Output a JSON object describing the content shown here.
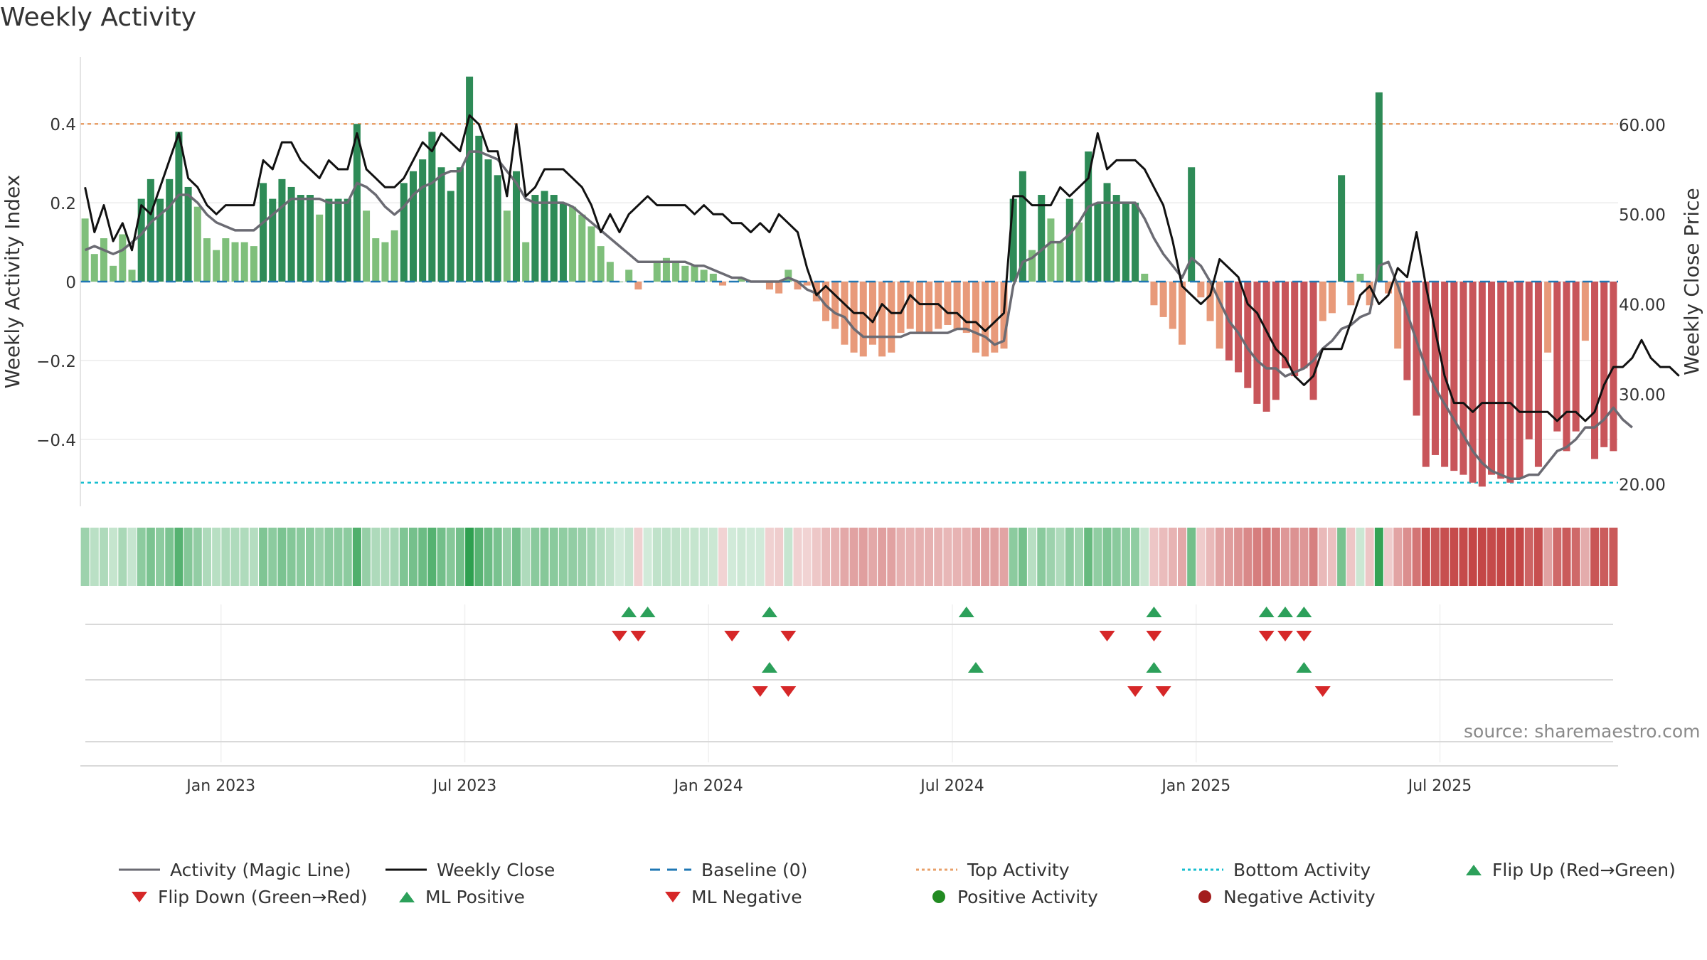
{
  "title": "Weekly Activity",
  "source": "source: sharemaestro.com",
  "colors": {
    "dark_green": "#2e8b57",
    "light_green": "#7fbf7b",
    "dark_red": "#c8555a",
    "light_red": "#e89a7a",
    "magic_line": "#6b6b73",
    "close_line": "#111111",
    "baseline": "#1f77b4",
    "top_line": "#e8a06a",
    "bottom_line": "#17becf",
    "flip_up": "#2ca05a",
    "flip_down": "#d62728",
    "positive_dot": "#228b22",
    "negative_dot": "#a31d1d"
  },
  "chart_data": {
    "type": "bar",
    "title": "Weekly Activity",
    "ylabel": "Weekly Activity Index",
    "y2label": "Weekly Close Price",
    "ylim": [
      -0.57,
      0.57
    ],
    "y2lim": [
      17.5,
      67.5
    ],
    "yticks": [
      0.4,
      0.2,
      0,
      -0.2,
      -0.4
    ],
    "ytick_labels": [
      "0.4",
      "0.2",
      "0",
      "−0.2",
      "−0.4"
    ],
    "y2ticks": [
      60,
      50,
      40,
      30,
      20
    ],
    "y2tick_labels": [
      "60.00",
      "50.00",
      "40.00",
      "30.00",
      "20.00"
    ],
    "xtick_labels": [
      "Jan 2023",
      "Jul 2023",
      "Jan 2024",
      "Jul 2024",
      "Jan 2025",
      "Jul 2025"
    ],
    "xtick_weeks": [
      15,
      41,
      67,
      93,
      119,
      145
    ],
    "top_activity": 0.4,
    "bottom_activity": -0.51,
    "activity_values": [
      0.16,
      0.07,
      0.11,
      0.04,
      0.12,
      0.03,
      0.21,
      0.26,
      0.21,
      0.26,
      0.38,
      0.24,
      0.19,
      0.11,
      0.08,
      0.11,
      0.1,
      0.1,
      0.09,
      0.25,
      0.21,
      0.26,
      0.24,
      0.22,
      0.22,
      0.17,
      0.21,
      0.21,
      0.21,
      0.4,
      0.18,
      0.11,
      0.1,
      0.13,
      0.25,
      0.28,
      0.31,
      0.38,
      0.29,
      0.23,
      0.29,
      0.52,
      0.37,
      0.31,
      0.27,
      0.18,
      0.28,
      0.1,
      0.22,
      0.23,
      0.22,
      0.2,
      0.19,
      0.17,
      0.14,
      0.09,
      0.05,
      0.0,
      0.03,
      -0.02,
      0.0,
      0.05,
      0.06,
      0.05,
      0.04,
      0.04,
      0.03,
      0.02,
      -0.01,
      0.0,
      0.01,
      0.0,
      0.0,
      -0.02,
      -0.03,
      0.03,
      -0.02,
      -0.01,
      -0.05,
      -0.1,
      -0.12,
      -0.16,
      -0.18,
      -0.19,
      -0.16,
      -0.19,
      -0.18,
      -0.13,
      -0.12,
      -0.13,
      -0.13,
      -0.12,
      -0.11,
      -0.12,
      -0.13,
      -0.18,
      -0.19,
      -0.18,
      -0.17,
      0.21,
      0.28,
      0.08,
      0.22,
      0.16,
      0.1,
      0.21,
      0.15,
      0.33,
      0.2,
      0.25,
      0.22,
      0.2,
      0.2,
      0.02,
      -0.06,
      -0.09,
      -0.12,
      -0.16,
      0.29,
      -0.04,
      -0.1,
      -0.17,
      -0.2,
      -0.23,
      -0.27,
      -0.31,
      -0.33,
      -0.3,
      -0.22,
      -0.24,
      -0.22,
      -0.3,
      -0.1,
      -0.08,
      0.27,
      -0.06,
      0.02,
      -0.06,
      0.48,
      -0.03,
      -0.17,
      -0.25,
      -0.34,
      -0.47,
      -0.44,
      -0.47,
      -0.48,
      -0.49,
      -0.51,
      -0.52,
      -0.49,
      -0.5,
      -0.51,
      -0.5,
      -0.4,
      -0.47,
      -0.18,
      -0.38,
      -0.43,
      -0.38,
      -0.15,
      -0.45,
      -0.42,
      -0.43
    ],
    "magic_line": [
      0.08,
      0.09,
      0.08,
      0.07,
      0.08,
      0.1,
      0.12,
      0.15,
      0.17,
      0.19,
      0.22,
      0.22,
      0.2,
      0.17,
      0.15,
      0.14,
      0.13,
      0.13,
      0.13,
      0.15,
      0.17,
      0.19,
      0.21,
      0.21,
      0.21,
      0.21,
      0.2,
      0.2,
      0.2,
      0.25,
      0.24,
      0.22,
      0.19,
      0.17,
      0.19,
      0.22,
      0.24,
      0.25,
      0.27,
      0.28,
      0.28,
      0.33,
      0.33,
      0.32,
      0.31,
      0.28,
      0.25,
      0.21,
      0.2,
      0.2,
      0.2,
      0.2,
      0.19,
      0.17,
      0.15,
      0.13,
      0.11,
      0.09,
      0.07,
      0.05,
      0.05,
      0.05,
      0.05,
      0.05,
      0.05,
      0.04,
      0.04,
      0.03,
      0.02,
      0.01,
      0.01,
      0.0,
      0.0,
      0.0,
      0.0,
      0.01,
      0.0,
      -0.02,
      -0.03,
      -0.06,
      -0.08,
      -0.09,
      -0.12,
      -0.14,
      -0.14,
      -0.14,
      -0.14,
      -0.14,
      -0.13,
      -0.13,
      -0.13,
      -0.13,
      -0.13,
      -0.12,
      -0.12,
      -0.13,
      -0.14,
      -0.16,
      -0.15,
      -0.01,
      0.05,
      0.06,
      0.08,
      0.1,
      0.1,
      0.12,
      0.15,
      0.19,
      0.2,
      0.2,
      0.2,
      0.2,
      0.2,
      0.16,
      0.11,
      0.07,
      0.04,
      0.01,
      0.06,
      0.04,
      0.0,
      -0.05,
      -0.1,
      -0.13,
      -0.17,
      -0.2,
      -0.22,
      -0.22,
      -0.24,
      -0.23,
      -0.22,
      -0.2,
      -0.17,
      -0.15,
      -0.12,
      -0.11,
      -0.09,
      -0.08,
      0.04,
      0.05,
      -0.01,
      -0.08,
      -0.15,
      -0.22,
      -0.27,
      -0.31,
      -0.35,
      -0.39,
      -0.43,
      -0.46,
      -0.48,
      -0.49,
      -0.5,
      -0.5,
      -0.49,
      -0.49,
      -0.46,
      -0.43,
      -0.42,
      -0.4,
      -0.37,
      -0.37,
      -0.35,
      -0.32,
      -0.35,
      -0.37
    ],
    "close_line": [
      53,
      48,
      51,
      47,
      49,
      46,
      51,
      50,
      53,
      56,
      59,
      54,
      53,
      51,
      50,
      51,
      51,
      51,
      51,
      56,
      55,
      58,
      58,
      56,
      55,
      54,
      56,
      55,
      55,
      59,
      55,
      54,
      53,
      53,
      54,
      56,
      58,
      57,
      59,
      58,
      57,
      61,
      60,
      57,
      57,
      52,
      60,
      52,
      53,
      55,
      55,
      55,
      54,
      53,
      51,
      48,
      50,
      48,
      50,
      51,
      52,
      51,
      51,
      51,
      51,
      50,
      51,
      50,
      50,
      49,
      49,
      48,
      49,
      48,
      50,
      49,
      48,
      44,
      41,
      42,
      41,
      40,
      39,
      39,
      38,
      40,
      39,
      39,
      41,
      40,
      40,
      40,
      39,
      39,
      38,
      38,
      37,
      38,
      39,
      52,
      52,
      51,
      51,
      51,
      53,
      52,
      53,
      54,
      59,
      55,
      56,
      56,
      56,
      55,
      53,
      51,
      47,
      42,
      41,
      40,
      41,
      45,
      44,
      43,
      40,
      39,
      37,
      35,
      34,
      32,
      31,
      32,
      35,
      35,
      35,
      38,
      41,
      42,
      40,
      41,
      44,
      43,
      48,
      42,
      37,
      32,
      29,
      29,
      28,
      29,
      29,
      29,
      29,
      28,
      28,
      28,
      28,
      27,
      28,
      28,
      27,
      28,
      31,
      33,
      33,
      34,
      36,
      34,
      33,
      33,
      32
    ],
    "flips_row1_up": [
      58,
      60,
      73,
      94,
      114,
      126,
      128,
      130
    ],
    "flips_row1_down": [
      57,
      59,
      69,
      75,
      109,
      114,
      126,
      128,
      130
    ],
    "flips_row2_up": [
      73,
      95,
      114,
      130
    ],
    "flips_row2_down": [
      72,
      75,
      112,
      115,
      132
    ]
  },
  "legend": [
    {
      "label": "Activity (Magic Line)",
      "icon": "solid-gray-line"
    },
    {
      "label": "Weekly Close",
      "icon": "solid-black-line"
    },
    {
      "label": "Baseline (0)",
      "icon": "dashed-blue-line"
    },
    {
      "label": "Top Activity",
      "icon": "dotted-orange-line"
    },
    {
      "label": "Bottom Activity",
      "icon": "dotted-cyan-line"
    },
    {
      "label": "Flip Up (Red→Green)",
      "icon": "green-up-triangle"
    },
    {
      "label": "Flip Down (Green→Red)",
      "icon": "red-down-triangle"
    },
    {
      "label": "ML Positive",
      "icon": "green-up-triangle"
    },
    {
      "label": "ML Negative",
      "icon": "red-down-triangle"
    },
    {
      "label": "Positive Activity",
      "icon": "green-circle"
    },
    {
      "label": "Negative Activity",
      "icon": "red-circle"
    }
  ]
}
